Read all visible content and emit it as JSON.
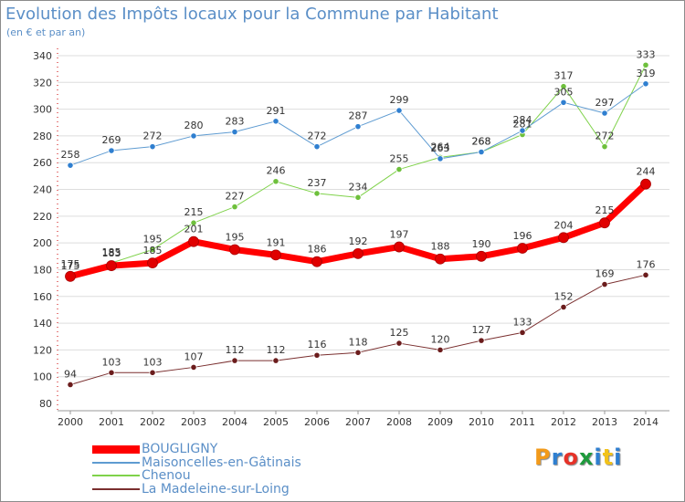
{
  "title": "Evolution des Impôts locaux pour la Commune par Habitant",
  "subtitle": "(en € et par an)",
  "logo": "Proxiti",
  "colors": {
    "logo": [
      "#f29a1a",
      "#2f7fd0",
      "#e63228",
      "#1e9a3c",
      "#2f7fd0",
      "#f2c21a",
      "#2f7fd0"
    ]
  },
  "chart_data": {
    "type": "line",
    "x": [
      2000,
      2001,
      2002,
      2003,
      2004,
      2005,
      2006,
      2007,
      2008,
      2009,
      2010,
      2011,
      2012,
      2013,
      2014
    ],
    "ylim": [
      80,
      340
    ],
    "yticks": [
      80,
      100,
      120,
      140,
      160,
      180,
      200,
      220,
      240,
      260,
      280,
      300,
      320,
      340
    ],
    "grid": "horizontal",
    "legend_position": "bottom-left",
    "series": [
      {
        "name": "La Madeleine-sur-Loing",
        "color": "#7a2f2f",
        "point_color": "#6b1c1c",
        "width": 1,
        "values": [
          94,
          103,
          103,
          107,
          112,
          112,
          116,
          118,
          125,
          120,
          127,
          133,
          152,
          169,
          176
        ]
      },
      {
        "name": "Chenou",
        "color": "#7fd24a",
        "point_color": "#6ec03c",
        "width": 1,
        "values": [
          175,
          185,
          195,
          215,
          227,
          246,
          237,
          234,
          255,
          264,
          268,
          281,
          317,
          272,
          333
        ]
      },
      {
        "name": "Maisoncelles-en-Gâtinais",
        "color": "#5e9bd1",
        "point_color": "#2f7fd0",
        "width": 1,
        "values": [
          258,
          269,
          272,
          280,
          283,
          291,
          272,
          287,
          299,
          263,
          268,
          284,
          305,
          297,
          319
        ]
      },
      {
        "name": "BOUGLIGNY",
        "color": "#ff0000",
        "point_color": "#e00000",
        "width": 7,
        "values": [
          175,
          183,
          185,
          201,
          195,
          191,
          186,
          192,
          197,
          188,
          190,
          196,
          204,
          215,
          244
        ]
      }
    ],
    "legend_order": [
      "BOUGLIGNY",
      "Maisoncelles-en-Gâtinais",
      "Chenou",
      "La Madeleine-sur-Loing"
    ]
  }
}
